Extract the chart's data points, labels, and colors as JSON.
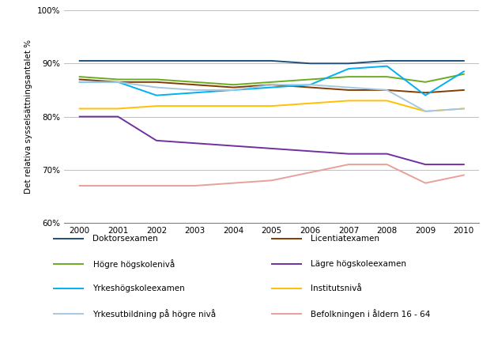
{
  "years": [
    2000,
    2001,
    2002,
    2003,
    2004,
    2005,
    2006,
    2007,
    2008,
    2009,
    2010
  ],
  "series": [
    {
      "label": "Doktorsexamen",
      "color": "#1F4E79",
      "values": [
        90.5,
        90.5,
        90.5,
        90.5,
        90.5,
        90.5,
        90.0,
        90.0,
        90.5,
        90.5,
        90.5
      ]
    },
    {
      "label": "Licentiatexamen",
      "color": "#833C00",
      "values": [
        87.0,
        86.5,
        86.5,
        86.0,
        85.5,
        86.0,
        85.5,
        85.0,
        85.0,
        84.5,
        85.0
      ]
    },
    {
      "label": "Högre högskolenivå",
      "color": "#6AAB20",
      "values": [
        87.5,
        87.0,
        87.0,
        86.5,
        86.0,
        86.5,
        87.0,
        87.5,
        87.5,
        86.5,
        88.0
      ]
    },
    {
      "label": "Lägre högskoleexamen",
      "color": "#7030A0",
      "values": [
        80.0,
        80.0,
        75.5,
        75.0,
        74.5,
        74.0,
        73.5,
        73.0,
        73.0,
        71.0,
        71.0
      ]
    },
    {
      "label": "Yrkeshögskoleexamen",
      "color": "#00B0F0",
      "values": [
        86.5,
        86.5,
        84.0,
        84.5,
        85.0,
        85.5,
        86.0,
        89.0,
        89.5,
        84.0,
        88.5
      ]
    },
    {
      "label": "Institutsnivå",
      "color": "#FFC000",
      "values": [
        81.5,
        81.5,
        82.0,
        82.0,
        82.0,
        82.0,
        82.5,
        83.0,
        83.0,
        81.0,
        81.5
      ]
    },
    {
      "label": "Yrkesutbildning på högre nivå",
      "color": "#A5C8E1",
      "values": [
        86.5,
        86.5,
        85.5,
        85.0,
        85.0,
        86.0,
        86.0,
        85.5,
        85.0,
        81.0,
        81.5
      ]
    },
    {
      "label": "Befolkningen i åldern 16 - 64",
      "color": "#E8A09A",
      "values": [
        67.0,
        67.0,
        67.0,
        67.0,
        67.5,
        68.0,
        69.5,
        71.0,
        71.0,
        67.5,
        69.0
      ]
    }
  ],
  "legend_order": [
    [
      "Doktorsexamen",
      "Licentiatexamen"
    ],
    [
      "Högre högskolenivå",
      "Lägre högskoleexamen"
    ],
    [
      "Yrkeshögskoleexamen",
      "Institutsnivå"
    ],
    [
      "Yrkesutbildning på högre nivå",
      "Befolkningen i åldern 16 - 64"
    ]
  ],
  "ylabel": "Det relativa syssel sättningsantalet %",
  "ylim": [
    60,
    100
  ],
  "yticks": [
    60,
    70,
    80,
    90,
    100
  ],
  "ytick_labels": [
    "60%",
    "70%",
    "80%",
    "90%",
    "100%"
  ],
  "xlim": [
    1999.6,
    2010.4
  ],
  "xticks": [
    2000,
    2001,
    2002,
    2003,
    2004,
    2005,
    2006,
    2007,
    2008,
    2009,
    2010
  ],
  "background_color": "#FFFFFF",
  "grid_color": "#C0C0C0",
  "linewidth": 1.4
}
